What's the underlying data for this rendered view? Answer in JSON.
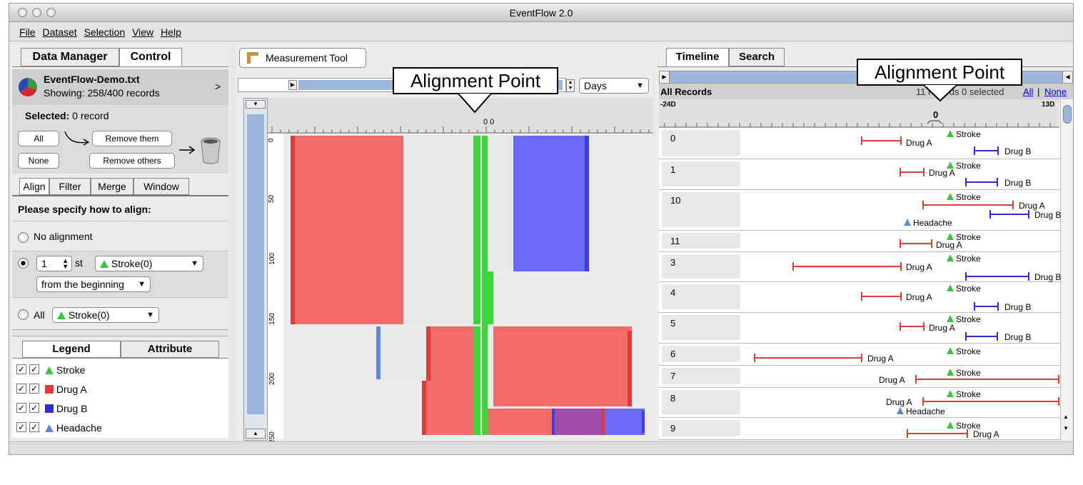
{
  "window": {
    "title": "EventFlow 2.0"
  },
  "menu": [
    "File",
    "Dataset",
    "Selection",
    "View",
    "Help"
  ],
  "left": {
    "tabs": [
      "Data Manager",
      "Control"
    ],
    "dataset": {
      "name": "EventFlow-Demo.txt",
      "showing": "Showing: 258/400 records",
      "chevron": ">"
    },
    "selected_label": "Selected:",
    "selected_value": "0 record",
    "buttons": {
      "all": "All",
      "none": "None",
      "remove_them": "Remove them",
      "remove_others": "Remove others"
    },
    "op_tabs": [
      "Align",
      "Filter",
      "Merge",
      "Window"
    ],
    "prompt": "Please specify how to align:",
    "no_alignment": "No alignment",
    "nth_value": "1",
    "nth_suffix": "st",
    "event_select": "Stroke(0)",
    "from_select": "from the beginning",
    "all_label": "All",
    "all_select": "Stroke(0)",
    "legend_tabs": [
      "Legend",
      "Attribute"
    ],
    "legend": [
      {
        "label": "Stroke",
        "shape": "triangle",
        "color": "#3cc43c"
      },
      {
        "label": "Drug A",
        "shape": "square",
        "color": "#e23b3b"
      },
      {
        "label": "Drug B",
        "shape": "square",
        "color": "#2c2ccc"
      },
      {
        "label": "Headache",
        "shape": "triangle",
        "color": "#5c8ad6"
      }
    ]
  },
  "middle": {
    "tool_button": "Measurement Tool",
    "unit_select": "Days",
    "axis_center": "0 0",
    "y_ticks": [
      "0",
      "50",
      "100",
      "150",
      "200",
      "250"
    ],
    "colors": {
      "stroke": "#3ad63a",
      "drugA": "#f36a6a",
      "drugB": "#6a6af6",
      "gray": "#e9e9e9",
      "purple": "#a04ea8",
      "headache": "#5c8ad6"
    }
  },
  "right": {
    "tabs": [
      "Timeline",
      "Search"
    ],
    "header_left": "All Records",
    "header_status": "11 records 0 selected",
    "all_link": "All",
    "sep": "|",
    "none_link": "None",
    "axis_left": "-24D",
    "axis_right": "13D",
    "axis_zero": "0",
    "records": [
      {
        "id": "0"
      },
      {
        "id": "1"
      },
      {
        "id": "10"
      },
      {
        "id": "11"
      },
      {
        "id": "3"
      },
      {
        "id": "4"
      },
      {
        "id": "5"
      },
      {
        "id": "6"
      },
      {
        "id": "7"
      },
      {
        "id": "8"
      },
      {
        "id": "9"
      }
    ],
    "event_labels": {
      "stroke": "Stroke",
      "drugA": "Drug A",
      "drugB": "Drug B",
      "headache": "Headache"
    }
  },
  "callouts": {
    "left": "Alignment Point",
    "right": "Alignment Point"
  }
}
